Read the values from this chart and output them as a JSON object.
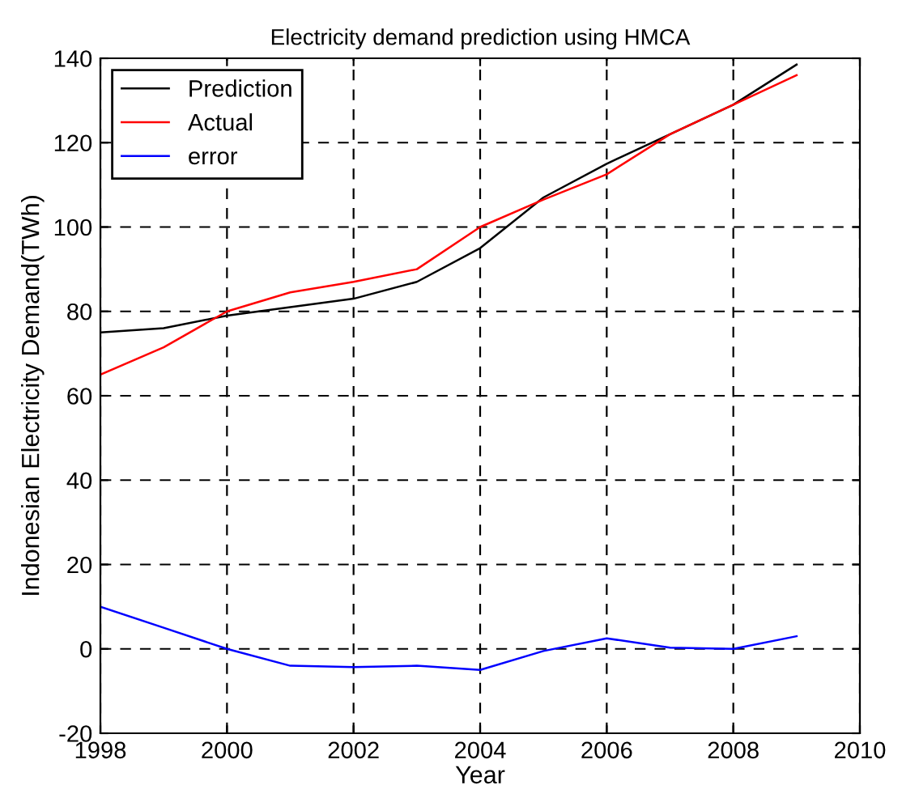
{
  "chart_data": {
    "type": "line",
    "title": "Electricity demand prediction using HMCA",
    "xlabel": "Year",
    "ylabel": "Indonesian Electricity Demand(TWh)",
    "x": [
      1998,
      1999,
      2000,
      2001,
      2002,
      2003,
      2004,
      2005,
      2006,
      2007,
      2008,
      2009
    ],
    "series": [
      {
        "name": "Prediction",
        "color": "#000000",
        "values": [
          75,
          76,
          79,
          81,
          83,
          87,
          95,
          107,
          115,
          122,
          129,
          138.5
        ]
      },
      {
        "name": "Actual",
        "color": "#ff0000",
        "values": [
          65,
          71.5,
          80,
          84.5,
          87,
          90,
          100,
          106.5,
          112.5,
          122,
          129,
          136
        ]
      },
      {
        "name": "error",
        "color": "#0000ff",
        "values": [
          10,
          5,
          0,
          -4,
          -4.3,
          -4,
          -5,
          -0.5,
          2.5,
          0.3,
          0,
          3
        ]
      }
    ],
    "xlim": [
      1998,
      2010
    ],
    "xticks": [
      1998,
      2000,
      2002,
      2004,
      2006,
      2008,
      2010
    ],
    "ylim": [
      -20,
      140
    ],
    "yticks": [
      -20,
      0,
      20,
      40,
      60,
      80,
      100,
      120,
      140
    ],
    "grid": true,
    "legend": "top left",
    "line_style": "solid"
  }
}
